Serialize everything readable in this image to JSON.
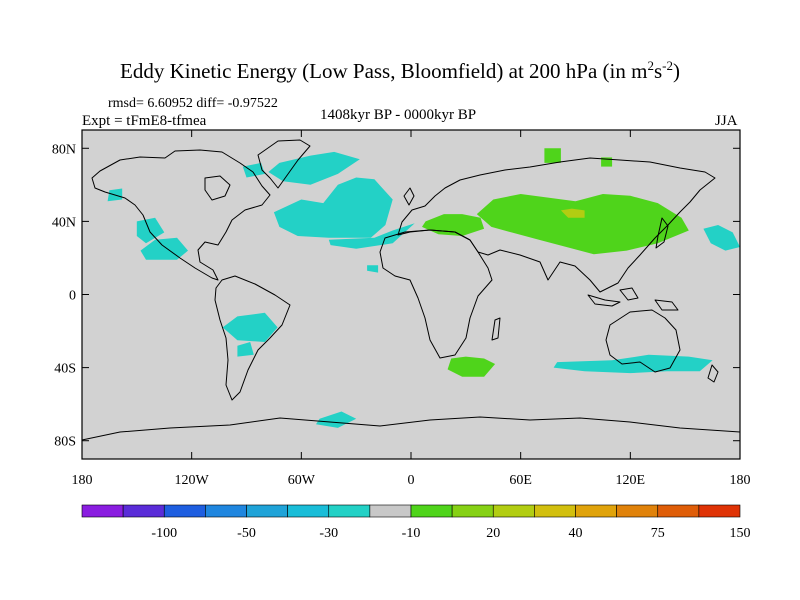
{
  "chart_data": {
    "type": "heatmap",
    "title": "Eddy Kinetic Energy (Low Pass, Bloomfield) at 200 hPa (in m",
    "title_sup1": "2",
    "title_mid": "s",
    "title_sup2": "-2",
    "title_end": ")",
    "stats": "rmsd= 6.60952 diff= -0.97522",
    "expt": "Expt = tFmE8-tfmea",
    "period": "1408kyr BP - 0000kyr BP",
    "season": "JJA",
    "xlim": [
      -180,
      180
    ],
    "ylim": [
      -90,
      90
    ],
    "x_ticks": [
      {
        "value": -180,
        "label": "180"
      },
      {
        "value": -120,
        "label": "120W"
      },
      {
        "value": -60,
        "label": "60W"
      },
      {
        "value": 0,
        "label": "0"
      },
      {
        "value": 60,
        "label": "60E"
      },
      {
        "value": 120,
        "label": "120E"
      },
      {
        "value": 180,
        "label": "180"
      }
    ],
    "y_ticks": [
      {
        "value": 80,
        "label": "80N"
      },
      {
        "value": 40,
        "label": "40N"
      },
      {
        "value": 0,
        "label": "0"
      },
      {
        "value": -40,
        "label": "40S"
      },
      {
        "value": -80,
        "label": "80S"
      }
    ],
    "colorbar": {
      "colors": [
        "#8a1de0",
        "#5a2cd8",
        "#1e5ee0",
        "#1f86df",
        "#1fa3d8",
        "#19bdd8",
        "#23d1c6",
        "#c8c8c8",
        "#4fd41b",
        "#86d115",
        "#b2cd12",
        "#d2bf0e",
        "#e0a30b",
        "#e0820a",
        "#df5d08",
        "#df3306"
      ],
      "labels": [
        {
          "after_box": 2,
          "text": "-100"
        },
        {
          "after_box": 4,
          "text": "-50"
        },
        {
          "after_box": 6,
          "text": "-30"
        },
        {
          "after_box": 8,
          "text": "-10"
        },
        {
          "after_box": 10,
          "text": "20"
        },
        {
          "after_box": 12,
          "text": "40"
        },
        {
          "after_box": 14,
          "text": "75"
        },
        {
          "after_box": 16,
          "text": "150"
        }
      ]
    },
    "regions": [
      {
        "value": -10,
        "color": "#23d1c6",
        "coords": [
          [
            -72,
            72
          ],
          [
            -55,
            76
          ],
          [
            -42,
            78
          ],
          [
            -28,
            74
          ],
          [
            -40,
            66
          ],
          [
            -55,
            60
          ],
          [
            -70,
            62
          ],
          [
            -78,
            67
          ]
        ]
      },
      {
        "value": -10,
        "color": "#23d1c6",
        "coords": [
          [
            -92,
            70
          ],
          [
            -82,
            72
          ],
          [
            -80,
            66
          ],
          [
            -90,
            64
          ]
        ]
      },
      {
        "value": -10,
        "color": "#23d1c6",
        "coords": [
          [
            -165,
            57
          ],
          [
            -158,
            58
          ],
          [
            -158,
            52
          ],
          [
            -166,
            51
          ]
        ]
      },
      {
        "value": -10,
        "color": "#23d1c6",
        "coords": [
          [
            -150,
            40
          ],
          [
            -140,
            42
          ],
          [
            -135,
            34
          ],
          [
            -145,
            28
          ],
          [
            -150,
            32
          ]
        ]
      },
      {
        "value": -10,
        "color": "#23d1c6",
        "coords": [
          [
            -148,
            24
          ],
          [
            -140,
            30
          ],
          [
            -128,
            31
          ],
          [
            -122,
            24
          ],
          [
            -128,
            19
          ],
          [
            -145,
            19
          ]
        ]
      },
      {
        "value": -10,
        "color": "#23d1c6",
        "coords": [
          [
            -75,
            45
          ],
          [
            -60,
            52
          ],
          [
            -48,
            50
          ],
          [
            -40,
            60
          ],
          [
            -30,
            64
          ],
          [
            -20,
            63
          ],
          [
            -10,
            52
          ],
          [
            -14,
            38
          ],
          [
            -22,
            31
          ],
          [
            -45,
            31
          ],
          [
            -62,
            32
          ],
          [
            -72,
            37
          ]
        ]
      },
      {
        "value": -10,
        "color": "#23d1c6",
        "coords": [
          [
            -45,
            30
          ],
          [
            -20,
            31
          ],
          [
            -10,
            35
          ],
          [
            2,
            39
          ],
          [
            -10,
            28
          ],
          [
            -30,
            25
          ],
          [
            -44,
            27
          ]
        ]
      },
      {
        "value": -10,
        "color": "#23d1c6",
        "coords": [
          [
            -95,
            -12
          ],
          [
            -80,
            -10
          ],
          [
            -73,
            -18
          ],
          [
            -80,
            -26
          ],
          [
            -95,
            -25
          ],
          [
            -103,
            -18
          ]
        ]
      },
      {
        "value": -10,
        "color": "#23d1c6",
        "coords": [
          [
            -95,
            -28
          ],
          [
            -88,
            -26
          ],
          [
            -86,
            -33
          ],
          [
            -95,
            -34
          ]
        ]
      },
      {
        "value": -10,
        "color": "#23d1c6",
        "coords": [
          [
            -50,
            -68
          ],
          [
            -38,
            -64
          ],
          [
            -30,
            -68
          ],
          [
            -40,
            -73
          ],
          [
            -52,
            -71
          ]
        ]
      },
      {
        "value": -10,
        "color": "#23d1c6",
        "coords": [
          [
            80,
            -37
          ],
          [
            110,
            -36
          ],
          [
            130,
            -33
          ],
          [
            152,
            -34
          ],
          [
            165,
            -36
          ],
          [
            158,
            -42
          ],
          [
            140,
            -42
          ],
          [
            120,
            -43
          ],
          [
            95,
            -42
          ],
          [
            78,
            -40
          ]
        ]
      },
      {
        "value": -10,
        "color": "#23d1c6",
        "coords": [
          [
            160,
            36
          ],
          [
            168,
            38
          ],
          [
            176,
            34
          ],
          [
            180,
            26
          ],
          [
            172,
            24
          ],
          [
            164,
            28
          ]
        ]
      },
      {
        "value": -10,
        "color": "#23d1c6",
        "coords": [
          [
            -24,
            16
          ],
          [
            -18,
            16
          ],
          [
            -18,
            12
          ],
          [
            -24,
            13
          ]
        ]
      },
      {
        "value": 20,
        "color": "#4fd41b",
        "coords": [
          [
            8,
            40
          ],
          [
            18,
            44
          ],
          [
            28,
            44
          ],
          [
            38,
            42
          ],
          [
            40,
            36
          ],
          [
            28,
            32
          ],
          [
            15,
            33
          ],
          [
            6,
            37
          ]
        ]
      },
      {
        "value": 20,
        "color": "#4fd41b",
        "coords": [
          [
            36,
            44
          ],
          [
            45,
            52
          ],
          [
            60,
            55
          ],
          [
            75,
            53
          ],
          [
            90,
            51
          ],
          [
            105,
            55
          ],
          [
            120,
            54
          ],
          [
            135,
            50
          ],
          [
            148,
            42
          ],
          [
            152,
            35
          ],
          [
            135,
            28
          ],
          [
            118,
            24
          ],
          [
            100,
            22
          ],
          [
            85,
            26
          ],
          [
            70,
            30
          ],
          [
            55,
            34
          ],
          [
            44,
            37
          ]
        ]
      },
      {
        "value": 20,
        "color": "#4fd41b",
        "coords": [
          [
            73,
            80
          ],
          [
            82,
            80
          ],
          [
            82,
            72
          ],
          [
            73,
            72
          ]
        ]
      },
      {
        "value": 20,
        "color": "#4fd41b",
        "coords": [
          [
            104,
            75
          ],
          [
            110,
            75
          ],
          [
            110,
            70
          ],
          [
            104,
            70
          ]
        ]
      },
      {
        "value": 20,
        "color": "#4fd41b",
        "coords": [
          [
            22,
            -35
          ],
          [
            30,
            -34
          ],
          [
            40,
            -35
          ],
          [
            46,
            -38
          ],
          [
            40,
            -45
          ],
          [
            28,
            -45
          ],
          [
            20,
            -41
          ]
        ]
      },
      {
        "value": 40,
        "color": "#b2cd12",
        "coords": [
          [
            82,
            46
          ],
          [
            88,
            47
          ],
          [
            95,
            46
          ],
          [
            95,
            42
          ],
          [
            86,
            42
          ]
        ]
      }
    ]
  }
}
